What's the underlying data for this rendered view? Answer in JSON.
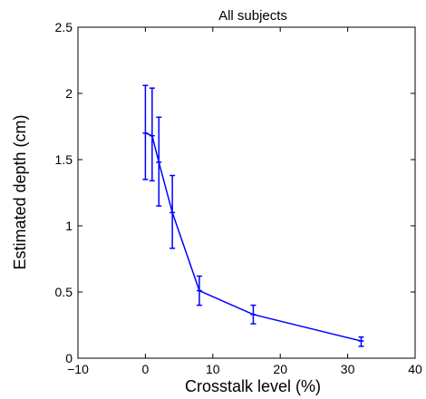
{
  "chart_data": {
    "type": "line",
    "title": "All subjects",
    "xlabel": "Crosstalk level (%)",
    "ylabel": "Estimated depth (cm)",
    "xlim": [
      -10,
      40
    ],
    "ylim": [
      0,
      2.5
    ],
    "xticks": [
      -10,
      0,
      10,
      20,
      30,
      40
    ],
    "yticks": [
      0,
      0.5,
      1,
      1.5,
      2,
      2.5
    ],
    "xtick_labels": [
      "−10",
      "0",
      "10",
      "20",
      "30",
      "40"
    ],
    "ytick_labels": [
      "0",
      "0.5",
      "1",
      "1.5",
      "2",
      "2.5"
    ],
    "grid": false,
    "legend": "none",
    "series": [
      {
        "x": [
          0,
          1,
          2,
          4,
          8,
          16,
          32
        ],
        "y": [
          1.7,
          1.68,
          1.48,
          1.1,
          0.51,
          0.33,
          0.13
        ],
        "err_low": [
          1.35,
          1.34,
          1.15,
          0.83,
          0.4,
          0.26,
          0.09
        ],
        "err_high": [
          2.06,
          2.04,
          1.82,
          1.38,
          0.62,
          0.4,
          0.16
        ],
        "color": "#0000ff"
      }
    ]
  }
}
